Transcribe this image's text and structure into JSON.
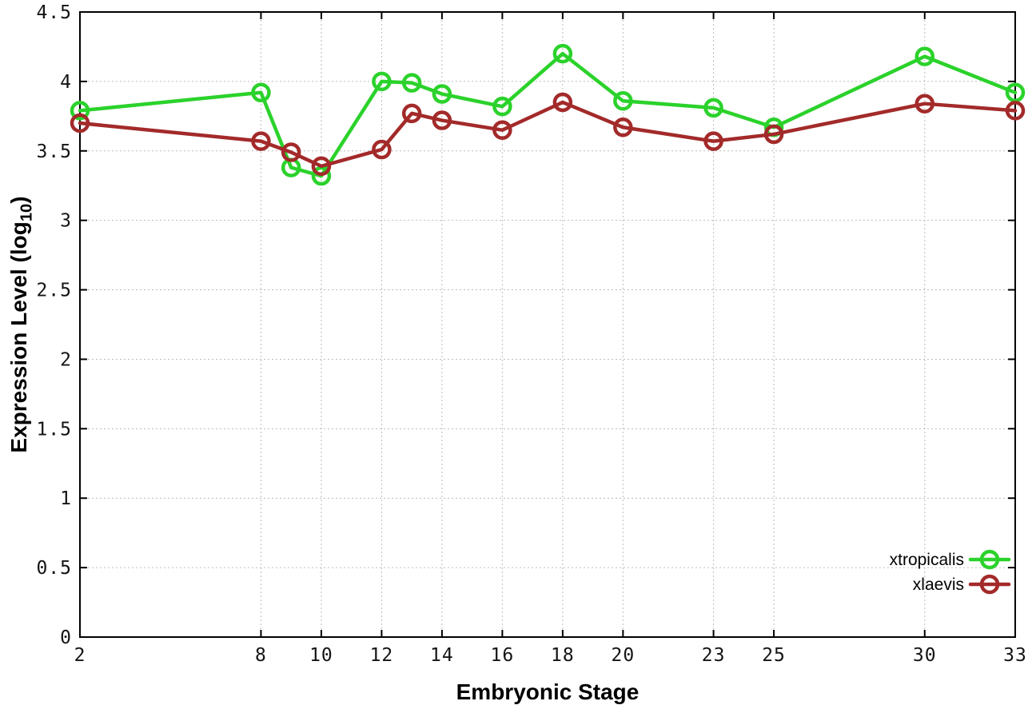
{
  "chart_data": {
    "type": "line",
    "title": "",
    "xlabel": "Embryonic Stage",
    "ylabel": "Expression Level (log10)",
    "ylabel_prefix": "Expression Level (log",
    "ylabel_sub": "10",
    "ylabel_suffix": ")",
    "xlim": [
      2,
      33
    ],
    "ylim": [
      0,
      4.5
    ],
    "grid": true,
    "legend_position": "inside-bottom-right",
    "x": [
      2,
      8,
      9,
      10,
      12,
      13,
      14,
      16,
      18,
      20,
      23,
      25,
      30,
      33
    ],
    "xticks": [
      2,
      8,
      10,
      12,
      14,
      16,
      18,
      20,
      23,
      25,
      30,
      33
    ],
    "xtick_labels": [
      "2",
      "8",
      "10",
      "12",
      "14",
      "16",
      "18",
      "20",
      "23",
      "25",
      "30",
      "33"
    ],
    "yticks": [
      0,
      0.5,
      1,
      1.5,
      2,
      2.5,
      3,
      3.5,
      4,
      4.5
    ],
    "ytick_labels": [
      "0",
      "0.5",
      "1",
      "1.5",
      "2",
      "2.5",
      "3",
      "3.5",
      "4",
      "4.5"
    ],
    "series": [
      {
        "name": "xtropicalis",
        "color": "#2bd22b",
        "values": [
          3.79,
          3.92,
          3.38,
          3.32,
          4.0,
          3.99,
          3.91,
          3.82,
          4.2,
          3.86,
          3.81,
          3.67,
          4.18,
          3.92
        ]
      },
      {
        "name": "xlaevis",
        "color": "#a32a2a",
        "values": [
          3.7,
          3.57,
          3.49,
          3.39,
          3.51,
          3.77,
          3.72,
          3.65,
          3.85,
          3.67,
          3.57,
          3.62,
          3.84,
          3.79
        ]
      }
    ]
  }
}
